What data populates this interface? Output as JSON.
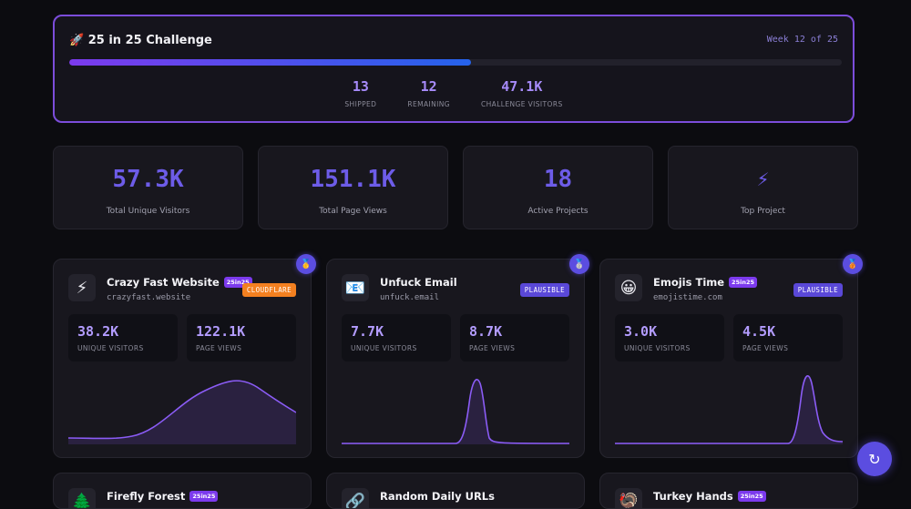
{
  "challenge": {
    "icon": "🚀",
    "title": "25 in 25 Challenge",
    "week": "Week 12 of 25",
    "progress": 0.52,
    "stats": [
      {
        "value": "13",
        "label": "SHIPPED"
      },
      {
        "value": "12",
        "label": "REMAINING"
      },
      {
        "value": "47.1K",
        "label": "CHALLENGE VISITORS"
      }
    ]
  },
  "summary": [
    {
      "value": "57.3K",
      "label": "Total Unique Visitors"
    },
    {
      "value": "151.1K",
      "label": "Total Page Views"
    },
    {
      "value": "18",
      "label": "Active Projects"
    },
    {
      "value": "⚡",
      "label": "Top Project"
    }
  ],
  "projects": [
    {
      "name": "Crazy Fast Website",
      "tag": "25in25",
      "domain": "crazyfast.website",
      "provider": "CLOUDFLARE",
      "icon": "⚡",
      "medal": "🥇",
      "unique": "38.2K",
      "unique_label": "UNIQUE VISITORS",
      "views": "122.1K",
      "views_label": "PAGE VIEWS"
    },
    {
      "name": "Unfuck Email",
      "tag": "",
      "domain": "unfuck.email",
      "provider": "PLAUSIBLE",
      "icon": "📧",
      "medal": "🥈",
      "unique": "7.7K",
      "unique_label": "UNIQUE VISITORS",
      "views": "8.7K",
      "views_label": "PAGE VIEWS"
    },
    {
      "name": "Emojis Time",
      "tag": "25in25",
      "domain": "emojistime.com",
      "provider": "PLAUSIBLE",
      "icon": "😀",
      "medal": "🥉",
      "unique": "3.0K",
      "unique_label": "UNIQUE VISITORS",
      "views": "4.5K",
      "views_label": "PAGE VIEWS"
    },
    {
      "name": "Firefly Forest",
      "tag": "25in25",
      "icon": "🌲"
    },
    {
      "name": "Random Daily URLs",
      "tag": "",
      "icon": "🔗"
    },
    {
      "name": "Turkey Hands",
      "tag": "25in25",
      "icon": "🦃"
    }
  ],
  "fab": {
    "icon": "↻"
  }
}
